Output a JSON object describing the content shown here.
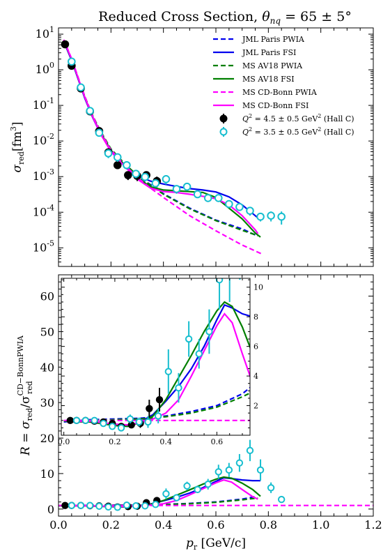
{
  "figure": {
    "title_text": "Reduced Cross Section, ",
    "title_math": "θ",
    "title_sub": "nq",
    "title_tail": " = 65 ± 5°"
  },
  "colors": {
    "jml": "#0000ee",
    "ms_av18": "#007f00",
    "ms_cdbonn": "#ff00ff",
    "hall_c_45": "#000000",
    "hall_c_35": "#17becf"
  },
  "chart_data": [
    {
      "type": "line",
      "panel": "top",
      "ylabel_main": "σ",
      "ylabel_sub": "red",
      "ylabel_unit": "[fm",
      "ylabel_exp": "3",
      "ylabel_close": "]",
      "yscale": "log",
      "xlim": [
        0.0,
        1.2
      ],
      "ylim": [
        3e-06,
        15
      ],
      "yticks": [
        1e-05,
        0.0001,
        0.001,
        0.01,
        0.1,
        1,
        10
      ],
      "ytick_labels": [
        "10^-5",
        "10^-4",
        "10^-3",
        "10^-2",
        "10^-1",
        "10^0",
        "10^1"
      ],
      "legend_position": "top-right",
      "series": [
        {
          "name": "JML Paris PWIA",
          "style": "dashed",
          "color": "#0000ee",
          "x": [
            0.02,
            0.05,
            0.08,
            0.1,
            0.13,
            0.16,
            0.2,
            0.25,
            0.3,
            0.35,
            0.4,
            0.5,
            0.6,
            0.7,
            0.75
          ],
          "y": [
            6.5,
            1.9,
            0.45,
            0.17,
            0.05,
            0.018,
            0.0058,
            0.0023,
            0.00105,
            0.0006,
            0.00033,
            0.00013,
            6e-05,
            3.4e-05,
            2.3e-05
          ]
        },
        {
          "name": "JML Paris FSI",
          "style": "solid",
          "color": "#0000ee",
          "x": [
            0.02,
            0.05,
            0.08,
            0.1,
            0.13,
            0.16,
            0.2,
            0.25,
            0.3,
            0.35,
            0.4,
            0.45,
            0.5,
            0.55,
            0.6,
            0.65,
            0.7,
            0.75,
            0.77
          ],
          "y": [
            6.3,
            1.85,
            0.43,
            0.16,
            0.046,
            0.016,
            0.0052,
            0.0021,
            0.00108,
            0.00075,
            0.00062,
            0.00053,
            0.00046,
            0.00042,
            0.00037,
            0.00027,
            0.00016,
            8e-05,
            6e-05
          ]
        },
        {
          "name": "MS AV18 PWIA",
          "style": "dashed",
          "color": "#007f00",
          "x": [
            0.02,
            0.05,
            0.08,
            0.1,
            0.13,
            0.16,
            0.2,
            0.25,
            0.3,
            0.35,
            0.4,
            0.5,
            0.6,
            0.7,
            0.76
          ],
          "y": [
            6.8,
            2.0,
            0.47,
            0.18,
            0.052,
            0.019,
            0.006,
            0.0024,
            0.00108,
            0.00058,
            0.00032,
            0.000125,
            5.8e-05,
            3.1e-05,
            2.2e-05
          ]
        },
        {
          "name": "MS AV18 FSI",
          "style": "solid",
          "color": "#007f00",
          "x": [
            0.02,
            0.05,
            0.08,
            0.1,
            0.13,
            0.16,
            0.2,
            0.25,
            0.3,
            0.35,
            0.4,
            0.45,
            0.5,
            0.55,
            0.6,
            0.65,
            0.7,
            0.75,
            0.77
          ],
          "y": [
            6.6,
            1.95,
            0.45,
            0.17,
            0.048,
            0.017,
            0.0055,
            0.0022,
            0.00095,
            0.00052,
            0.00042,
            0.0004,
            0.00038,
            0.00036,
            0.00026,
            0.00013,
            6.5e-05,
            2.6e-05,
            2e-05
          ]
        },
        {
          "name": "MS CD-Bonn PWIA",
          "style": "dashed",
          "color": "#ff00ff",
          "x": [
            0.02,
            0.05,
            0.08,
            0.1,
            0.13,
            0.16,
            0.2,
            0.25,
            0.3,
            0.35,
            0.4,
            0.5,
            0.6,
            0.7,
            0.78
          ],
          "y": [
            7.0,
            2.05,
            0.48,
            0.18,
            0.051,
            0.018,
            0.0056,
            0.0022,
            0.00095,
            0.00048,
            0.00026,
            8e-05,
            3e-05,
            1.2e-05,
            6.5e-06
          ]
        },
        {
          "name": "MS CD-Bonn FSI",
          "style": "solid",
          "color": "#ff00ff",
          "x": [
            0.02,
            0.05,
            0.08,
            0.1,
            0.13,
            0.16,
            0.2,
            0.25,
            0.3,
            0.35,
            0.4,
            0.45,
            0.5,
            0.55,
            0.6,
            0.65,
            0.7,
            0.75,
            0.76
          ],
          "y": [
            6.8,
            2.0,
            0.46,
            0.17,
            0.048,
            0.016,
            0.005,
            0.002,
            0.00085,
            0.00048,
            0.00038,
            0.00036,
            0.00032,
            0.00028,
            0.00024,
            0.00016,
            8e-05,
            3.2e-05,
            2.5e-05
          ]
        }
      ],
      "points": [
        {
          "name": "Q^2 = 4.5 ± 0.5 GeV^2 (Hall C)",
          "color": "#000000",
          "filled": true,
          "x": [
            0.025,
            0.05,
            0.085,
            0.12,
            0.155,
            0.19,
            0.225,
            0.265,
            0.3,
            0.335,
            0.375
          ],
          "y": [
            5.2,
            1.3,
            0.3,
            0.068,
            0.019,
            0.0048,
            0.0021,
            0.0011,
            0.00105,
            0.0011,
            0.00075
          ],
          "err": [
            0.8,
            0.15,
            0.03,
            0.007,
            0.002,
            0.0006,
            0.0004,
            0.0003,
            0.0003,
            0.0003,
            0.00025
          ]
        },
        {
          "name": "Q^2 = 3.5 ± 0.5 GeV^2 (Hall C)",
          "color": "#17becf",
          "filled": false,
          "x": [
            0.05,
            0.085,
            0.12,
            0.155,
            0.19,
            0.225,
            0.26,
            0.295,
            0.33,
            0.37,
            0.41,
            0.45,
            0.49,
            0.53,
            0.57,
            0.61,
            0.65,
            0.69,
            0.73,
            0.77,
            0.81,
            0.85
          ],
          "y": [
            1.7,
            0.32,
            0.07,
            0.017,
            0.0045,
            0.0035,
            0.0021,
            0.0012,
            0.00098,
            0.00065,
            0.00085,
            0.00045,
            0.00052,
            0.00032,
            0.00025,
            0.00025,
            0.00017,
            0.00014,
            0.00011,
            7.5e-05,
            8e-05,
            7.5e-05
          ],
          "err": [
            0.2,
            0.04,
            0.008,
            0.003,
            0.0012,
            0.0009,
            0.0005,
            0.0003,
            0.00025,
            0.00015,
            0.00025,
            0.00012,
            0.00012,
            7e-05,
            5e-05,
            5e-05,
            4e-05,
            3e-05,
            3e-05,
            2e-05,
            2.5e-05,
            3e-05
          ]
        }
      ]
    },
    {
      "type": "line",
      "panel": "bottom",
      "ylabel_main": "R = σ",
      "ylabel_sub": "red",
      "ylabel_mid": "/σ",
      "ylabel_sub2": "red",
      "ylabel_sup2": "CD−BonnPWIA",
      "xlabel_main": "p",
      "xlabel_sub": "r",
      "xlabel_unit": " [GeV/c]",
      "xlim": [
        0.0,
        1.2
      ],
      "ylim": [
        -2,
        66
      ],
      "xticks": [
        0.0,
        0.2,
        0.4,
        0.6,
        0.8,
        1.0,
        1.2
      ],
      "xtick_labels": [
        "0.0",
        "0.2",
        "0.4",
        "0.6",
        "0.8",
        "1.0",
        "1.2"
      ],
      "yticks": [
        0,
        10,
        20,
        30,
        40,
        50,
        60
      ],
      "ytick_labels": [
        "0",
        "10",
        "20",
        "30",
        "40",
        "50",
        "60"
      ],
      "series": [
        {
          "name": "JML Paris PWIA",
          "style": "dashed",
          "color": "#0000ee",
          "x": [
            0.0,
            0.1,
            0.2,
            0.3,
            0.4,
            0.5,
            0.6,
            0.7,
            0.75
          ],
          "y": [
            0.9,
            1.05,
            1.1,
            1.15,
            1.3,
            1.6,
            2.0,
            2.8,
            3.5
          ]
        },
        {
          "name": "JML Paris FSI",
          "style": "solid",
          "color": "#0000ee",
          "x": [
            0.02,
            0.1,
            0.2,
            0.25,
            0.3,
            0.35,
            0.4,
            0.45,
            0.5,
            0.55,
            0.6,
            0.63,
            0.66,
            0.7,
            0.74,
            0.77
          ],
          "y": [
            0.9,
            0.95,
            0.7,
            0.6,
            0.9,
            1.4,
            2.3,
            3.3,
            4.5,
            6.0,
            7.8,
            8.8,
            8.6,
            8.2,
            8.0,
            8.0
          ]
        },
        {
          "name": "MS AV18 PWIA",
          "style": "dashed",
          "color": "#007f00",
          "x": [
            0.0,
            0.1,
            0.2,
            0.3,
            0.4,
            0.5,
            0.6,
            0.7,
            0.76
          ],
          "y": [
            0.95,
            1.0,
            1.05,
            1.1,
            1.25,
            1.5,
            1.9,
            2.6,
            3.1
          ]
        },
        {
          "name": "MS AV18 FSI",
          "style": "solid",
          "color": "#007f00",
          "x": [
            0.02,
            0.1,
            0.2,
            0.25,
            0.3,
            0.35,
            0.4,
            0.45,
            0.5,
            0.55,
            0.6,
            0.63,
            0.66,
            0.7,
            0.74,
            0.77
          ],
          "y": [
            0.9,
            0.9,
            0.65,
            0.6,
            0.85,
            1.3,
            2.4,
            3.9,
            5.4,
            7.0,
            8.4,
            9.0,
            8.7,
            7.3,
            5.5,
            3.6
          ]
        },
        {
          "name": "MS CD-Bonn PWIA",
          "style": "dashed",
          "color": "#ff00ff",
          "x": [
            0.0,
            1.2
          ],
          "y": [
            1.0,
            1.0
          ]
        },
        {
          "name": "MS CD-Bonn FSI",
          "style": "solid",
          "color": "#ff00ff",
          "x": [
            0.02,
            0.1,
            0.2,
            0.25,
            0.3,
            0.35,
            0.4,
            0.45,
            0.5,
            0.55,
            0.6,
            0.63,
            0.66,
            0.7,
            0.74,
            0.76
          ],
          "y": [
            0.9,
            0.95,
            0.75,
            0.7,
            0.85,
            1.1,
            1.5,
            2.4,
            4.0,
            5.7,
            7.4,
            8.2,
            7.6,
            5.5,
            3.5,
            2.8
          ]
        }
      ],
      "points": [
        {
          "name": "Q^2 = 4.5 ± 0.5 GeV^2 (Hall C)",
          "color": "#000000",
          "filled": true,
          "x": [
            0.025,
            0.05,
            0.085,
            0.12,
            0.155,
            0.19,
            0.225,
            0.265,
            0.3,
            0.335,
            0.375
          ],
          "y": [
            1.0,
            1.0,
            1.0,
            0.95,
            0.9,
            0.8,
            0.6,
            0.7,
            0.8,
            1.8,
            2.4
          ],
          "err": [
            0.1,
            0.1,
            0.1,
            0.1,
            0.1,
            0.1,
            0.15,
            0.2,
            0.3,
            0.6,
            0.8
          ]
        },
        {
          "name": "Q^2 = 3.5 ± 0.5 GeV^2 (Hall C)",
          "color": "#17becf",
          "filled": false,
          "x": [
            0.05,
            0.085,
            0.12,
            0.155,
            0.19,
            0.225,
            0.26,
            0.295,
            0.33,
            0.37,
            0.41,
            0.45,
            0.49,
            0.53,
            0.57,
            0.61,
            0.65,
            0.69,
            0.73,
            0.77,
            0.81,
            0.85
          ],
          "y": [
            1.0,
            1.0,
            1.0,
            0.8,
            0.6,
            0.5,
            1.1,
            0.9,
            0.9,
            1.3,
            4.3,
            3.2,
            6.5,
            5.5,
            7.0,
            10.5,
            11.0,
            13.0,
            16.5,
            11.0,
            6.0,
            2.7
          ],
          "err": [
            0.1,
            0.1,
            0.1,
            0.15,
            0.15,
            0.2,
            0.3,
            0.3,
            0.4,
            0.5,
            1.5,
            1.0,
            1.2,
            1.0,
            1.5,
            2.0,
            2.0,
            2.5,
            3.0,
            3.0,
            1.5,
            0.8
          ]
        }
      ]
    },
    {
      "type": "line",
      "panel": "inset",
      "xlim": [
        -0.01,
        0.73
      ],
      "ylim": [
        0.0,
        10.6
      ],
      "xticks": [
        0.0,
        0.2,
        0.4,
        0.6
      ],
      "xtick_labels": [
        "0.0",
        "0.2",
        "0.4",
        "0.6"
      ],
      "yticks": [
        2,
        4,
        6,
        8,
        10
      ],
      "ytick_labels": [
        "2",
        "4",
        "6",
        "8",
        "10"
      ],
      "ytick_side": "right",
      "note": "magnified view of the low-momentum region of the ratio panel"
    }
  ],
  "legend": {
    "items": [
      {
        "label": "JML Paris PWIA",
        "color": "#0000ee",
        "style": "dashed"
      },
      {
        "label": "JML Paris FSI",
        "color": "#0000ee",
        "style": "solid"
      },
      {
        "label": "MS AV18 PWIA",
        "color": "#007f00",
        "style": "dashed"
      },
      {
        "label": "MS AV18 FSI",
        "color": "#007f00",
        "style": "solid"
      },
      {
        "label": "MS CD-Bonn PWIA",
        "color": "#ff00ff",
        "style": "dashed"
      },
      {
        "label": "MS CD-Bonn FSI",
        "color": "#ff00ff",
        "style": "solid"
      }
    ],
    "data_items": [
      {
        "pre": "Q",
        "sup": "2",
        "mid": " = 4.5 ± 0.5 GeV",
        "sup2": "2",
        "post": " (Hall C)",
        "color": "#000000",
        "filled": true
      },
      {
        "pre": "Q",
        "sup": "2",
        "mid": " = 3.5 ± 0.5 GeV",
        "sup2": "2",
        "post": " (Hall C)",
        "color": "#17becf",
        "filled": false
      }
    ]
  }
}
